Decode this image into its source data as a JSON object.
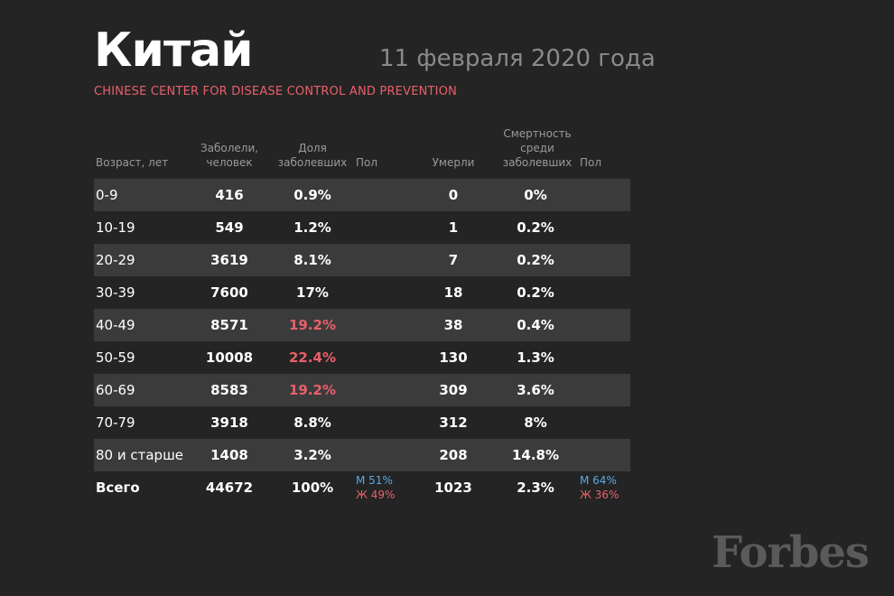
{
  "header": {
    "title": "Китай",
    "date": "11 февраля 2020 года",
    "source": "CHINESE CENTER FOR DISEASE CONTROL AND PREVENTION"
  },
  "columns": {
    "age": "Возраст, лет",
    "sick_line1": "Заболели,",
    "sick_line2": "человек",
    "share_line1": "Доля",
    "share_line2": "заболевших",
    "sex1": "Пол",
    "dead": "Умерли",
    "mort_line1": "Смертность",
    "mort_line2": "среди",
    "mort_line3": "заболевших",
    "sex2": "Пол"
  },
  "rows": [
    {
      "age": "0-9",
      "sick": "416",
      "share": "0.9%",
      "dead": "0",
      "mort": "0%"
    },
    {
      "age": "10-19",
      "sick": "549",
      "share": "1.2%",
      "dead": "1",
      "mort": "0.2%"
    },
    {
      "age": "20-29",
      "sick": "3619",
      "share": "8.1%",
      "dead": "7",
      "mort": "0.2%"
    },
    {
      "age": "30-39",
      "sick": "7600",
      "share": "17%",
      "dead": "18",
      "mort": "0.2%"
    },
    {
      "age": "40-49",
      "sick": "8571",
      "share": "19.2%",
      "dead": "38",
      "mort": "0.4%"
    },
    {
      "age": "50-59",
      "sick": "10008",
      "share": "22.4%",
      "dead": "130",
      "mort": "1.3%"
    },
    {
      "age": "60-69",
      "sick": "8583",
      "share": "19.2%",
      "dead": "309",
      "mort": "3.6%"
    },
    {
      "age": "70-79",
      "sick": "3918",
      "share": "8.8%",
      "dead": "312",
      "mort": "8%"
    },
    {
      "age": "80 и старше",
      "sick": "1408",
      "share": "3.2%",
      "dead": "208",
      "mort": "14.8%"
    }
  ],
  "total": {
    "age": "Всего",
    "sick": "44672",
    "share": "100%",
    "sex_sick_m": "М 51%",
    "sex_sick_f": "Ж 49%",
    "dead": "1023",
    "mort": "2.3%",
    "sex_dead_m": "М 64%",
    "sex_dead_f": "Ж 36%"
  },
  "colors": {
    "background": "#242424",
    "row_shade": "#3b3b3b",
    "highlight_red": "#e8606a",
    "male_blue": "#5aa9e6",
    "header_grey": "#9a9a9a"
  },
  "logo": "Forbes"
}
